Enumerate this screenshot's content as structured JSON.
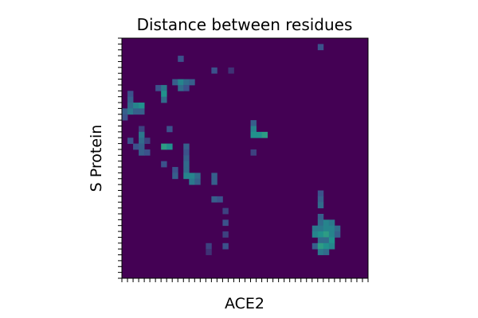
{
  "chart_data": {
    "type": "heatmap",
    "title": "Distance between residues",
    "xlabel": "ACE2",
    "ylabel": "S Protein",
    "x_tick_labels": "none",
    "y_tick_labels": "none",
    "colormap": "viridis",
    "background_value": 0,
    "grid": false,
    "n_cols": 44,
    "n_rows": 41,
    "cells": [
      [
        35,
        1,
        0.25
      ],
      [
        10,
        3,
        0.25
      ],
      [
        16,
        5,
        0.25
      ],
      [
        19,
        5,
        0.15
      ],
      [
        9,
        7,
        0.3
      ],
      [
        10,
        7,
        0.45
      ],
      [
        11,
        7,
        0.35
      ],
      [
        12,
        7,
        0.3
      ],
      [
        6,
        8,
        0.25
      ],
      [
        7,
        8,
        0.4
      ],
      [
        10,
        8,
        0.35
      ],
      [
        11,
        8,
        0.25
      ],
      [
        1,
        9,
        0.25
      ],
      [
        7,
        9,
        0.5
      ],
      [
        7,
        10,
        0.35
      ],
      [
        1,
        10,
        0.3
      ],
      [
        1,
        11,
        0.35
      ],
      [
        2,
        11,
        0.45
      ],
      [
        3,
        11,
        0.5
      ],
      [
        0,
        12,
        0.3
      ],
      [
        1,
        12,
        0.4
      ],
      [
        2,
        12,
        0.3
      ],
      [
        3,
        12,
        0.3
      ],
      [
        0,
        13,
        0.25
      ],
      [
        23,
        14,
        0.3
      ],
      [
        3,
        15,
        0.2
      ],
      [
        8,
        15,
        0.25
      ],
      [
        23,
        15,
        0.45
      ],
      [
        3,
        16,
        0.4
      ],
      [
        23,
        16,
        0.5
      ],
      [
        24,
        16,
        0.5
      ],
      [
        25,
        16,
        0.55
      ],
      [
        1,
        17,
        0.25
      ],
      [
        3,
        17,
        0.35
      ],
      [
        4,
        17,
        0.2
      ],
      [
        2,
        18,
        0.25
      ],
      [
        3,
        18,
        0.3
      ],
      [
        7,
        18,
        0.55
      ],
      [
        8,
        18,
        0.5
      ],
      [
        11,
        18,
        0.3
      ],
      [
        3,
        19,
        0.3
      ],
      [
        4,
        19,
        0.25
      ],
      [
        23,
        19,
        0.2
      ],
      [
        11,
        19,
        0.25
      ],
      [
        11,
        20,
        0.3
      ],
      [
        7,
        21,
        0.25
      ],
      [
        11,
        21,
        0.35
      ],
      [
        9,
        22,
        0.25
      ],
      [
        11,
        22,
        0.35
      ],
      [
        9,
        23,
        0.3
      ],
      [
        11,
        23,
        0.45
      ],
      [
        12,
        23,
        0.45
      ],
      [
        13,
        23,
        0.35
      ],
      [
        16,
        23,
        0.3
      ],
      [
        12,
        24,
        0.4
      ],
      [
        13,
        24,
        0.3
      ],
      [
        16,
        24,
        0.3
      ],
      [
        35,
        26,
        0.25
      ],
      [
        16,
        27,
        0.3
      ],
      [
        17,
        27,
        0.25
      ],
      [
        35,
        27,
        0.3
      ],
      [
        35,
        28,
        0.35
      ],
      [
        18,
        29,
        0.2
      ],
      [
        35,
        30,
        0.3
      ],
      [
        18,
        31,
        0.25
      ],
      [
        35,
        31,
        0.35
      ],
      [
        36,
        31,
        0.45
      ],
      [
        37,
        31,
        0.4
      ],
      [
        34,
        32,
        0.4
      ],
      [
        35,
        32,
        0.4
      ],
      [
        36,
        32,
        0.45
      ],
      [
        37,
        32,
        0.45
      ],
      [
        38,
        32,
        0.35
      ],
      [
        18,
        33,
        0.2
      ],
      [
        34,
        33,
        0.45
      ],
      [
        35,
        33,
        0.5
      ],
      [
        36,
        33,
        0.55
      ],
      [
        37,
        33,
        0.45
      ],
      [
        38,
        33,
        0.3
      ],
      [
        35,
        34,
        0.35
      ],
      [
        36,
        34,
        0.35
      ],
      [
        37,
        34,
        0.5
      ],
      [
        15,
        35,
        0.2
      ],
      [
        18,
        35,
        0.25
      ],
      [
        34,
        35,
        0.3
      ],
      [
        35,
        35,
        0.55
      ],
      [
        36,
        35,
        0.5
      ],
      [
        37,
        35,
        0.45
      ],
      [
        15,
        36,
        0.15
      ],
      [
        35,
        36,
        0.4
      ],
      [
        36,
        36,
        0.35
      ]
    ]
  }
}
